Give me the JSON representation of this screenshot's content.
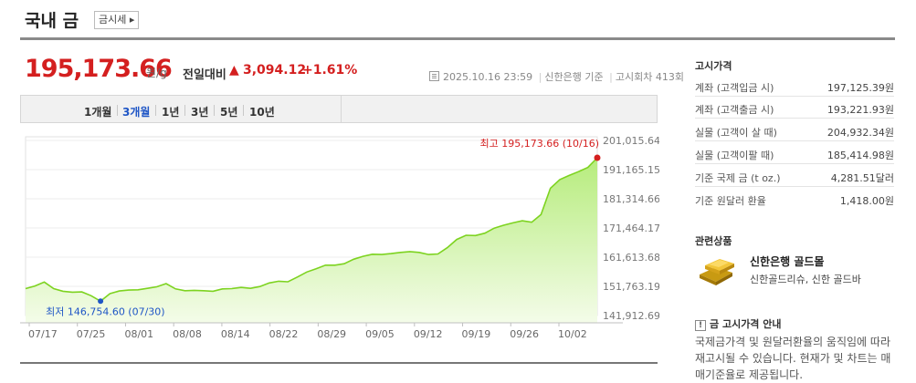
{
  "header": {
    "title": "국내 금",
    "badge": "금시세 ▸"
  },
  "price": {
    "value": "195,173.66",
    "unit": "원/g",
    "compare_label": "전일대비",
    "change_icon": "up-triangle-icon",
    "change": "3,094.12",
    "change_rate": "+1.61%",
    "date": "2025.10.16 23:59",
    "source": "신한은행 기준",
    "round": "고시회차 413회"
  },
  "period_tabs": [
    {
      "label": "1개월",
      "active": false
    },
    {
      "label": "3개월",
      "active": true
    },
    {
      "label": "1년",
      "active": false
    },
    {
      "label": "3년",
      "active": false
    },
    {
      "label": "5년",
      "active": false
    },
    {
      "label": "10년",
      "active": false
    }
  ],
  "chart_data": {
    "type": "area",
    "x_ticks": [
      "07/17",
      "07/25",
      "08/01",
      "08/08",
      "08/14",
      "08/22",
      "08/29",
      "09/05",
      "09/12",
      "09/19",
      "09/26",
      "10/02"
    ],
    "y_ticks": [
      "201,015.64",
      "191,165.15",
      "181,314.66",
      "171,464.17",
      "161,613.68",
      "151,763.19",
      "141,912.69"
    ],
    "ylim": [
      141912.69,
      201015.64
    ],
    "series": [
      {
        "values": [
          151000,
          151900,
          153200,
          151000,
          150100,
          149800,
          149900,
          148600,
          146754.6,
          149300,
          150200,
          150500,
          150600,
          151100,
          151600,
          152700,
          150900,
          150300,
          150400,
          150300,
          150100,
          150900,
          151000,
          151400,
          151100,
          151700,
          152900,
          153500,
          153300,
          154900,
          156600,
          157700,
          158900,
          158900,
          159400,
          160900,
          161900,
          162600,
          162500,
          162800,
          163200,
          163500,
          163200,
          162500,
          162700,
          164800,
          167600,
          169000,
          168900,
          169700,
          171400,
          172400,
          173200,
          173900,
          173400,
          176000,
          184900,
          187800,
          189200,
          190500,
          191900,
          195173.66
        ],
        "color": "#7dd320"
      }
    ],
    "high": {
      "label": "최고",
      "value": "195,173.66",
      "date": "(10/16)",
      "color": "#d41f1f"
    },
    "low": {
      "label": "최저",
      "value": "146,754.60",
      "date": "(07/30)",
      "color": "#1f56c6"
    }
  },
  "sidebar": {
    "notice_title": "고시가격",
    "rows": [
      {
        "label": "계좌 (고객입금 시)",
        "value": "197,125.39원"
      },
      {
        "label": "계좌 (고객출금 시)",
        "value": "193,221.93원"
      },
      {
        "label": "실물 (고객이 살 때)",
        "value": "204,932.34원"
      },
      {
        "label": "실물 (고객이팔 때)",
        "value": "185,414.98원"
      },
      {
        "label": "기준 국제 금 (t oz.)",
        "value": "4,281.51달러"
      },
      {
        "label": "기준 원달러 환율",
        "value": "1,418.00원"
      }
    ],
    "related_title": "관련상품",
    "product_name": "신한은행 골드몰",
    "product_sub": "신한골드리슈, 신한 골드바",
    "info_title": "금 고시가격 안내",
    "info_icon": "!",
    "info_text": "국제금가격 및 원달러환율의 움직임에 따라 재고시될 수 있습니다. 현재가 및 차트는 매매기준율로 제공됩니다."
  }
}
